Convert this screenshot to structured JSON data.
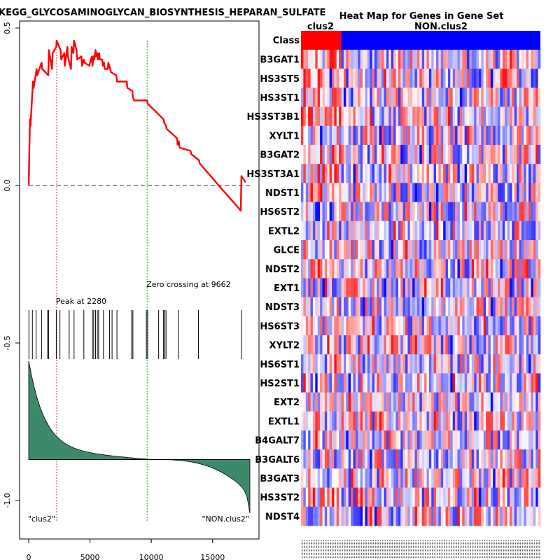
{
  "chart_data": [
    {
      "type": "line",
      "name": "enrichment-plot",
      "title": "KEGG_GLYCOSAMINOGLYCAN_BIOSYNTHESIS_HEPARAN_SULFATE",
      "xlim": [
        0,
        18000
      ],
      "ylim": [
        -1.1,
        0.5
      ],
      "x_ticks": [
        "0",
        "5000",
        "10000",
        "15000"
      ],
      "x_tick_values": [
        0,
        5000,
        10000,
        15000
      ],
      "y_ticks": [
        "0.5",
        "0.0",
        "-0.5",
        "-1.0"
      ],
      "y_tick_values": [
        0.5,
        0.0,
        -0.5,
        -1.0
      ],
      "running_es": {
        "x": [
          0,
          100,
          150,
          350,
          400,
          650,
          700,
          1050,
          1100,
          1600,
          1650,
          1900,
          1950,
          2250,
          2280,
          2600,
          2650,
          2900,
          2950,
          3150,
          3200,
          3450,
          3500,
          3650,
          3700,
          3900,
          3950,
          4300,
          4350,
          4500,
          4550,
          4950,
          5000,
          5150,
          5200,
          5300,
          5350,
          5450,
          5500,
          5600,
          5650,
          5750,
          5800,
          6000,
          6050,
          6150,
          6200,
          6450,
          6500,
          6650,
          6700,
          7150,
          7200,
          8000,
          8050,
          8450,
          8500,
          8600,
          8650,
          9650,
          9700,
          11000,
          11050,
          11200,
          11250,
          12100,
          12150,
          12250,
          12300,
          13200,
          13250,
          13900,
          13950,
          17300,
          17350,
          17700
        ],
        "y": [
          0.0,
          0.21,
          0.19,
          0.33,
          0.31,
          0.37,
          0.35,
          0.39,
          0.37,
          0.35,
          0.43,
          0.37,
          0.42,
          0.44,
          0.46,
          0.43,
          0.4,
          0.42,
          0.38,
          0.44,
          0.41,
          0.37,
          0.44,
          0.42,
          0.46,
          0.43,
          0.4,
          0.41,
          0.38,
          0.4,
          0.39,
          0.38,
          0.39,
          0.41,
          0.38,
          0.41,
          0.4,
          0.43,
          0.41,
          0.42,
          0.4,
          0.42,
          0.4,
          0.4,
          0.38,
          0.39,
          0.37,
          0.37,
          0.39,
          0.37,
          0.36,
          0.35,
          0.33,
          0.33,
          0.31,
          0.3,
          0.28,
          0.27,
          0.27,
          0.27,
          0.26,
          0.21,
          0.2,
          0.19,
          0.18,
          0.15,
          0.13,
          0.14,
          0.12,
          0.11,
          0.1,
          0.08,
          0.07,
          -0.08,
          0.03,
          0.01
        ]
      },
      "baseline": 0.0,
      "peak_label": "Peak at 2280",
      "peak_x": 2280,
      "zero_cross_label": "Zero crossing at 9662",
      "zero_cross_x": 9662,
      "hit_positions": [
        20,
        300,
        600,
        1050,
        1550,
        1620,
        2250,
        2550,
        3300,
        3700,
        4500,
        5200,
        5300,
        5450,
        5600,
        5700,
        6100,
        6600,
        6800,
        7200,
        8400,
        8500,
        9600,
        9700,
        10600,
        11000,
        11100,
        11200,
        12200,
        13850,
        17350
      ],
      "metric_left_label": "\"clus2\"",
      "metric_right_label": "\"NON.clus2\"",
      "metric_zero_y": -0.87,
      "metric_top_y": -0.59,
      "metric_bottom_y": -1.04
    },
    {
      "type": "heatmap",
      "name": "gene-heatmap",
      "title": "Heat Map for Genes in Gene Set",
      "class_label": "Class",
      "group_labels": [
        "clus2",
        "NON.clus2"
      ],
      "group_sizes": [
        17,
        84
      ],
      "group_colors": [
        "#ff0000",
        "#0000ff"
      ],
      "genes": [
        "B3GAT1",
        "HS3ST5",
        "HS3ST1",
        "HS3ST3B1",
        "XYLT1",
        "B3GAT2",
        "HS3ST3A1",
        "NDST1",
        "HS6ST2",
        "EXTL2",
        "GLCE",
        "NDST2",
        "EXT1",
        "NDST3",
        "HS6ST3",
        "XYLT2",
        "HS6ST1",
        "HS2ST1",
        "EXT2",
        "EXTL1",
        "B4GALT7",
        "B3GALT6",
        "B3GAT3",
        "HS3ST2",
        "NDST4"
      ],
      "n_columns": 101,
      "value_range": [
        -1,
        1
      ]
    }
  ]
}
